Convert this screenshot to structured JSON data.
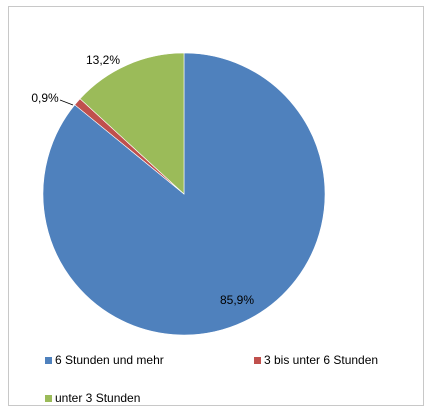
{
  "chart_data": {
    "type": "pie",
    "slices": [
      {
        "label": "6 Stunden und mehr",
        "value": 85.9,
        "display": "85,9%",
        "color": "#4f81bd"
      },
      {
        "label": "3 bis unter 6 Stunden",
        "value": 0.9,
        "display": "0,9%",
        "color": "#c0504d"
      },
      {
        "label": "unter 3 Stunden",
        "value": 13.2,
        "display": "13,2%",
        "color": "#9bbb59"
      }
    ],
    "legend_position": "bottom",
    "start_angle": "12 o'clock, clockwise"
  }
}
